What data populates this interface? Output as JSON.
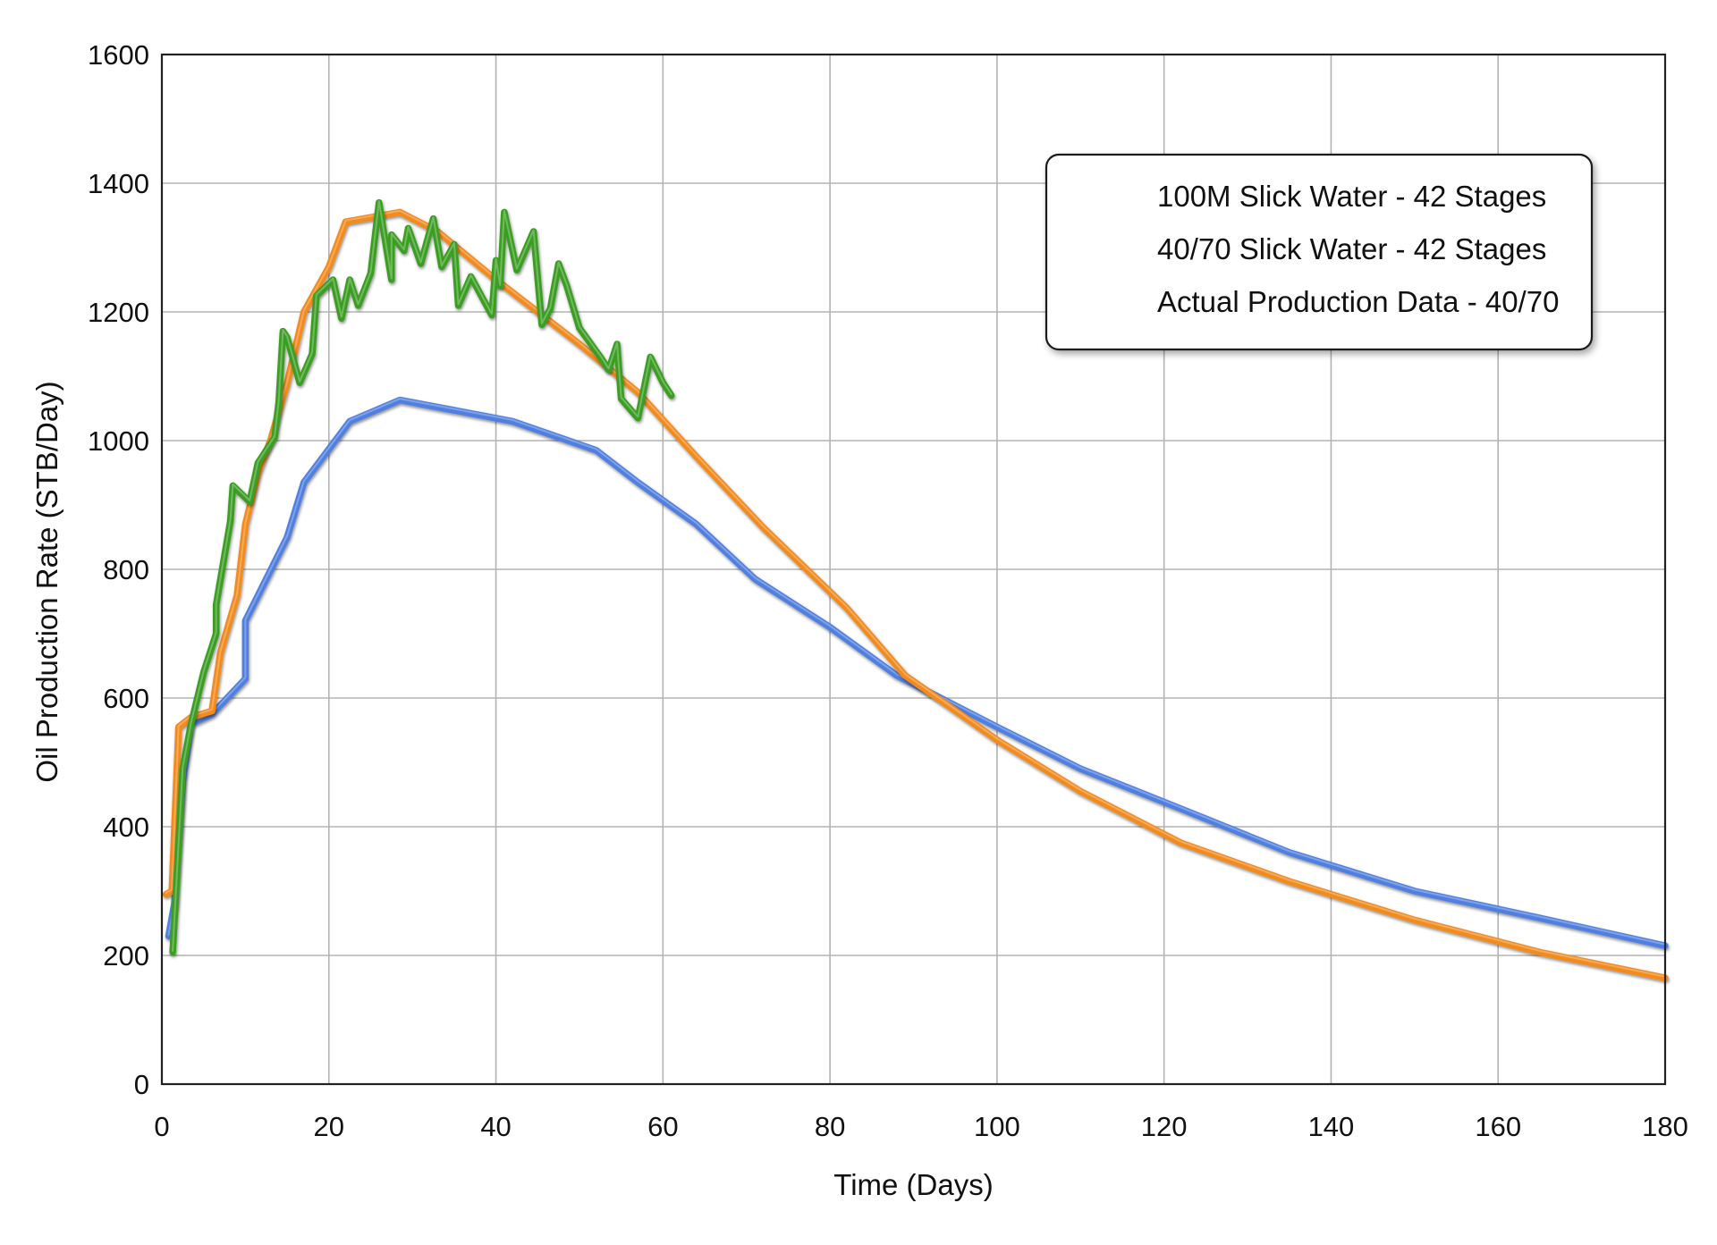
{
  "chart_data": {
    "type": "line",
    "title": "",
    "xlabel": "Time (Days)",
    "ylabel": "Oil Production Rate (STB/Day)",
    "xlim": [
      0,
      180
    ],
    "ylim": [
      0,
      1600
    ],
    "xticks": [
      0,
      20,
      40,
      60,
      80,
      100,
      120,
      140,
      160,
      180
    ],
    "yticks": [
      0,
      200,
      400,
      600,
      800,
      1000,
      1200,
      1400,
      1600
    ],
    "grid": true,
    "legend_position": "top-right",
    "series": [
      {
        "name": "100M Slick Water - 42 Stages",
        "color": "#4f7fe0",
        "points": [
          [
            0.8,
            230
          ],
          [
            1.5,
            280
          ],
          [
            2.5,
            470
          ],
          [
            3.5,
            560
          ],
          [
            6,
            575
          ],
          [
            10,
            630
          ],
          [
            10,
            720
          ],
          [
            15,
            850
          ],
          [
            17,
            935
          ],
          [
            22.5,
            1030
          ],
          [
            28.5,
            1063
          ],
          [
            42,
            1030
          ],
          [
            52,
            985
          ],
          [
            57,
            935
          ],
          [
            64,
            870
          ],
          [
            71,
            785
          ],
          [
            80,
            710
          ],
          [
            88,
            635
          ],
          [
            100,
            555
          ],
          [
            110,
            490
          ],
          [
            122,
            428
          ],
          [
            135,
            360
          ],
          [
            150,
            300
          ],
          [
            165,
            258
          ],
          [
            180,
            215
          ]
        ]
      },
      {
        "name": "40/70 Slick Water - 42 Stages",
        "color": "#f28a1e",
        "points": [
          [
            0.5,
            295
          ],
          [
            1.2,
            300
          ],
          [
            2,
            555
          ],
          [
            3.5,
            570
          ],
          [
            6,
            580
          ],
          [
            7,
            670
          ],
          [
            9,
            760
          ],
          [
            10,
            870
          ],
          [
            11.5,
            950
          ],
          [
            13,
            1000
          ],
          [
            15,
            1090
          ],
          [
            17,
            1200
          ],
          [
            20,
            1270
          ],
          [
            22,
            1340
          ],
          [
            28.5,
            1355
          ],
          [
            33,
            1325
          ],
          [
            40,
            1250
          ],
          [
            50,
            1150
          ],
          [
            57,
            1075
          ],
          [
            64,
            975
          ],
          [
            72,
            865
          ],
          [
            82,
            740
          ],
          [
            89,
            635
          ],
          [
            100,
            535
          ],
          [
            110,
            455
          ],
          [
            122,
            375
          ],
          [
            135,
            315
          ],
          [
            150,
            255
          ],
          [
            165,
            205
          ],
          [
            180,
            165
          ]
        ]
      },
      {
        "name": "Actual Production Data - 40/70",
        "color": "#3b9e22",
        "points": [
          [
            1.3,
            205
          ],
          [
            2.5,
            490
          ],
          [
            3.5,
            560
          ],
          [
            5,
            640
          ],
          [
            6.5,
            700
          ],
          [
            6.5,
            745
          ],
          [
            8.2,
            875
          ],
          [
            8.5,
            930
          ],
          [
            10.5,
            905
          ],
          [
            11.5,
            965
          ],
          [
            13.5,
            1005
          ],
          [
            14,
            1060
          ],
          [
            14.5,
            1170
          ],
          [
            15,
            1160
          ],
          [
            16.5,
            1090
          ],
          [
            18,
            1135
          ],
          [
            18.5,
            1225
          ],
          [
            20.5,
            1250
          ],
          [
            21.5,
            1190
          ],
          [
            22.5,
            1250
          ],
          [
            23.5,
            1210
          ],
          [
            25,
            1260
          ],
          [
            26,
            1370
          ],
          [
            27.5,
            1250
          ],
          [
            27.5,
            1320
          ],
          [
            29,
            1295
          ],
          [
            29.5,
            1330
          ],
          [
            31,
            1275
          ],
          [
            32.5,
            1345
          ],
          [
            33.5,
            1270
          ],
          [
            35,
            1305
          ],
          [
            35.5,
            1210
          ],
          [
            37,
            1255
          ],
          [
            39.5,
            1195
          ],
          [
            40,
            1280
          ],
          [
            40.5,
            1240
          ],
          [
            41,
            1355
          ],
          [
            42.5,
            1265
          ],
          [
            43.5,
            1295
          ],
          [
            44.5,
            1325
          ],
          [
            45.5,
            1180
          ],
          [
            46.5,
            1205
          ],
          [
            47.5,
            1275
          ],
          [
            48.5,
            1240
          ],
          [
            50,
            1175
          ],
          [
            52.5,
            1130
          ],
          [
            53.5,
            1110
          ],
          [
            54.5,
            1150
          ],
          [
            55,
            1065
          ],
          [
            57,
            1035
          ],
          [
            58.5,
            1130
          ],
          [
            60,
            1090
          ],
          [
            61,
            1070
          ]
        ]
      }
    ]
  }
}
